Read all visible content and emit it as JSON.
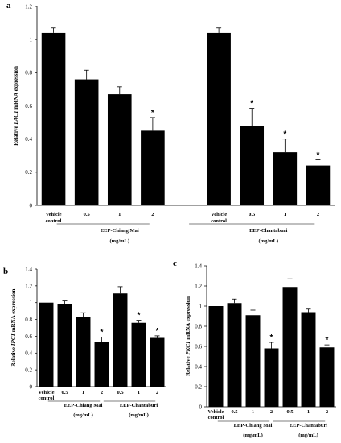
{
  "chart_data": [
    {
      "type": "bar",
      "panel": "a",
      "ylabel_prefix": "Relative ",
      "ylabel_gene": "LAC1",
      "ylabel_suffix": " mRNA expression",
      "ylim": [
        0,
        1.2
      ],
      "yticks": [
        "0",
        "0.2",
        "0.4",
        "0.6",
        "0.8",
        "1",
        "1.2"
      ],
      "categories": [
        "Vehicle control",
        "0.5",
        "1",
        "2",
        "Vehicle control",
        "0.5",
        "1",
        "2"
      ],
      "values": [
        1.04,
        0.76,
        0.67,
        0.45,
        1.04,
        0.48,
        0.32,
        0.24
      ],
      "errors": [
        0.03,
        0.055,
        0.045,
        0.08,
        0.03,
        0.105,
        0.08,
        0.035
      ],
      "significant": [
        false,
        false,
        false,
        true,
        false,
        true,
        true,
        true
      ],
      "groups": [
        {
          "label_line1": "EEP-Chiang Mai",
          "label_line2": "(mg/mL)"
        },
        {
          "label_line1": "EEP-Chantaburi",
          "label_line2": "(mg/mL)"
        }
      ],
      "grid": false
    },
    {
      "type": "bar",
      "panel": "b",
      "ylabel_prefix": "Relative ",
      "ylabel_gene": "IPC1",
      "ylabel_suffix": " mRNA expression",
      "ylim": [
        0,
        1.4
      ],
      "yticks": [
        "0",
        "0.2",
        "0.4",
        "0.6",
        "0.8",
        "1",
        "1.2",
        "1.4"
      ],
      "categories": [
        "Vehicle control",
        "0.5",
        "1",
        "2",
        "0.5",
        "1",
        "2"
      ],
      "values": [
        1.0,
        0.98,
        0.83,
        0.53,
        1.11,
        0.76,
        0.58
      ],
      "errors": [
        0.0,
        0.04,
        0.05,
        0.06,
        0.08,
        0.03,
        0.025
      ],
      "significant": [
        false,
        false,
        false,
        true,
        false,
        true,
        true
      ],
      "groups": [
        {
          "label_line1": "EEP-Chiang Mai",
          "label_line2": "(mg/mL)"
        },
        {
          "label_line1": "EEP-Chantaburi",
          "label_line2": "(mg/mL)"
        }
      ],
      "grid": false
    },
    {
      "type": "bar",
      "panel": "c",
      "ylabel_prefix": "Relative ",
      "ylabel_gene": "PKC1",
      "ylabel_suffix": " mRNA expression",
      "ylim": [
        0,
        1.4
      ],
      "yticks": [
        "0",
        "0.2",
        "0.4",
        "0.6",
        "0.8",
        "1",
        "1.2",
        "1.4"
      ],
      "categories": [
        "Vehicle control",
        "0.5",
        "1",
        "2",
        "0.5",
        "1",
        "2"
      ],
      "values": [
        1.0,
        1.03,
        0.91,
        0.58,
        1.19,
        0.94,
        0.59
      ],
      "errors": [
        0.0,
        0.04,
        0.05,
        0.06,
        0.08,
        0.03,
        0.025
      ],
      "significant": [
        false,
        false,
        false,
        true,
        false,
        false,
        true
      ],
      "groups": [
        {
          "label_line1": "EEP-Chiang Mai",
          "label_line2": "(mg/mL)"
        },
        {
          "label_line1": "EEP-Chantaburi",
          "label_line2": "(mg/mL)"
        }
      ],
      "grid": false
    }
  ]
}
